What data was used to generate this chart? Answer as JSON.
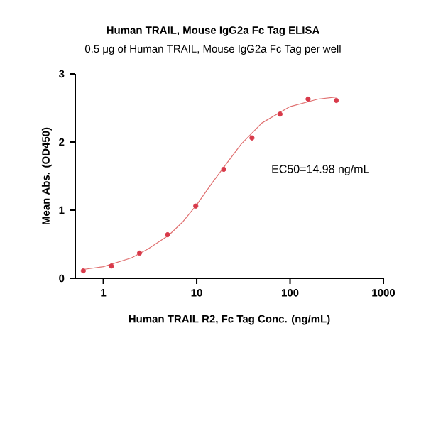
{
  "chart_data": {
    "type": "scatter",
    "title": "Human TRAIL, Mouse IgG2a Fc Tag ELISA",
    "subtitle": "0.5 μg of Human TRAIL, Mouse IgG2a Fc Tag per well",
    "xlabel": "Human TRAIL R2, Fc Tag Conc. (ng/mL)",
    "ylabel": "Mean Abs. (OD450)",
    "annotations": [
      "EC50=14.98 ng/mL"
    ],
    "log": "x",
    "xlim": [
      0.5,
      1000
    ],
    "xticks": [
      1,
      10,
      100,
      1000
    ],
    "ylim": [
      0,
      3
    ],
    "yticks": [
      0,
      1,
      2,
      3
    ],
    "grid": false,
    "series": [
      {
        "marker": "circle",
        "color": "#d83a4a",
        "x": [
          0.61,
          1.22,
          2.44,
          4.88,
          9.77,
          19.5,
          39.1,
          78.1,
          156,
          313
        ],
        "values": [
          0.11,
          0.18,
          0.37,
          0.64,
          1.06,
          1.6,
          2.06,
          2.41,
          2.63,
          2.61
        ]
      },
      {
        "type": "line",
        "marker": "none",
        "color": "#e07070",
        "x": [
          0.61,
          1,
          2,
          3,
          5,
          7,
          10,
          15,
          20,
          30,
          50,
          100,
          200,
          313
        ],
        "values": [
          0.13,
          0.17,
          0.3,
          0.43,
          0.63,
          0.82,
          1.08,
          1.42,
          1.65,
          1.97,
          2.28,
          2.52,
          2.63,
          2.66
        ]
      }
    ]
  }
}
